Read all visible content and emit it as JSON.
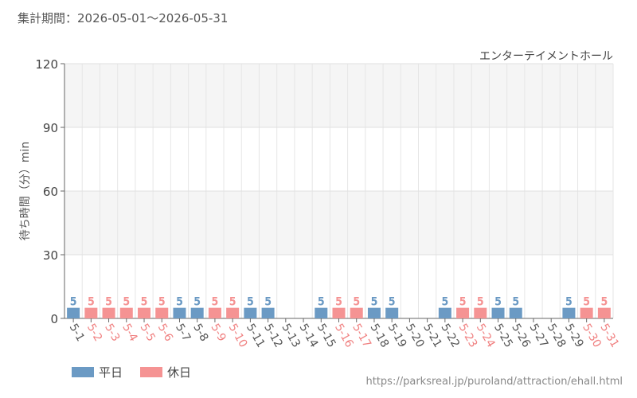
{
  "header": {
    "period_label": "集計期間：",
    "period_range": "2026-05-01～2026-05-31"
  },
  "attraction_name": "エンターテイメントホール",
  "legend": {
    "weekday_label": "平日",
    "holiday_label": "休日"
  },
  "source_url": "https://parksreal.jp/puroland/attraction/ehall.html",
  "colors": {
    "weekday": "#6b9ac4",
    "holiday": "#f59393",
    "weekday_text": "#555555",
    "holiday_text": "#f08080"
  },
  "chart_data": {
    "type": "bar",
    "ylabel": "待ち時間（分）min",
    "ylim": [
      0,
      120
    ],
    "yticks": [
      0,
      30,
      60,
      90,
      120
    ],
    "grid": true,
    "legend_position": "bottom-left",
    "categories": [
      "5-1",
      "5-2",
      "5-3",
      "5-4",
      "5-5",
      "5-6",
      "5-7",
      "5-8",
      "5-9",
      "5-10",
      "5-11",
      "5-12",
      "5-13",
      "5-14",
      "5-15",
      "5-16",
      "5-17",
      "5-18",
      "5-19",
      "5-20",
      "5-21",
      "5-22",
      "5-23",
      "5-24",
      "5-25",
      "5-26",
      "5-27",
      "5-28",
      "5-29",
      "5-30",
      "5-31"
    ],
    "day_types": [
      "weekday",
      "holiday",
      "holiday",
      "holiday",
      "holiday",
      "holiday",
      "weekday",
      "weekday",
      "holiday",
      "holiday",
      "weekday",
      "weekday",
      "weekday",
      "weekday",
      "weekday",
      "holiday",
      "holiday",
      "weekday",
      "weekday",
      "weekday",
      "weekday",
      "weekday",
      "holiday",
      "holiday",
      "weekday",
      "weekday",
      "weekday",
      "weekday",
      "weekday",
      "holiday",
      "holiday"
    ],
    "values": [
      5,
      5,
      5,
      5,
      5,
      5,
      5,
      5,
      5,
      5,
      5,
      5,
      null,
      null,
      5,
      5,
      5,
      5,
      5,
      null,
      null,
      5,
      5,
      5,
      5,
      5,
      null,
      null,
      5,
      5,
      5
    ]
  }
}
